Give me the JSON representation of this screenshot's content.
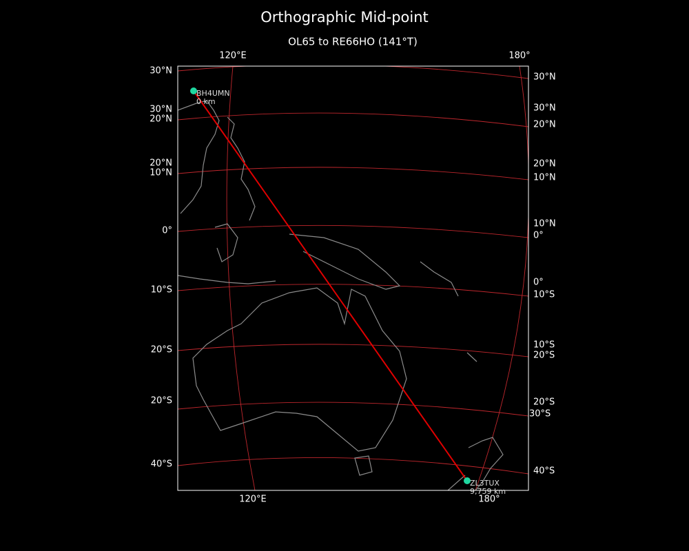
{
  "header": {
    "title": "Orthographic Mid-point",
    "subtitle": "OL65 to RE66HO (141°T)"
  },
  "map": {
    "top_labels": [
      "120°E",
      "180°"
    ],
    "bottom_labels": [
      "120°E",
      "180°"
    ],
    "left_labels": [
      "30°N",
      "30°N",
      "20°N",
      "20°N",
      "10°N",
      "0°",
      "10°S",
      "20°S",
      "20°S",
      "40°S"
    ],
    "right_labels": [
      "30°N",
      "30°N",
      "20°N",
      "20°N",
      "10°N",
      "10°N",
      "0°",
      "0°",
      "10°S",
      "10°S",
      "20°S",
      "20°S",
      "30°S",
      "40°S"
    ],
    "stations": [
      {
        "callsign": "BH4UMN",
        "distance": "0 km"
      },
      {
        "callsign": "ZL3TUX",
        "distance": "9,759 km"
      }
    ]
  }
}
